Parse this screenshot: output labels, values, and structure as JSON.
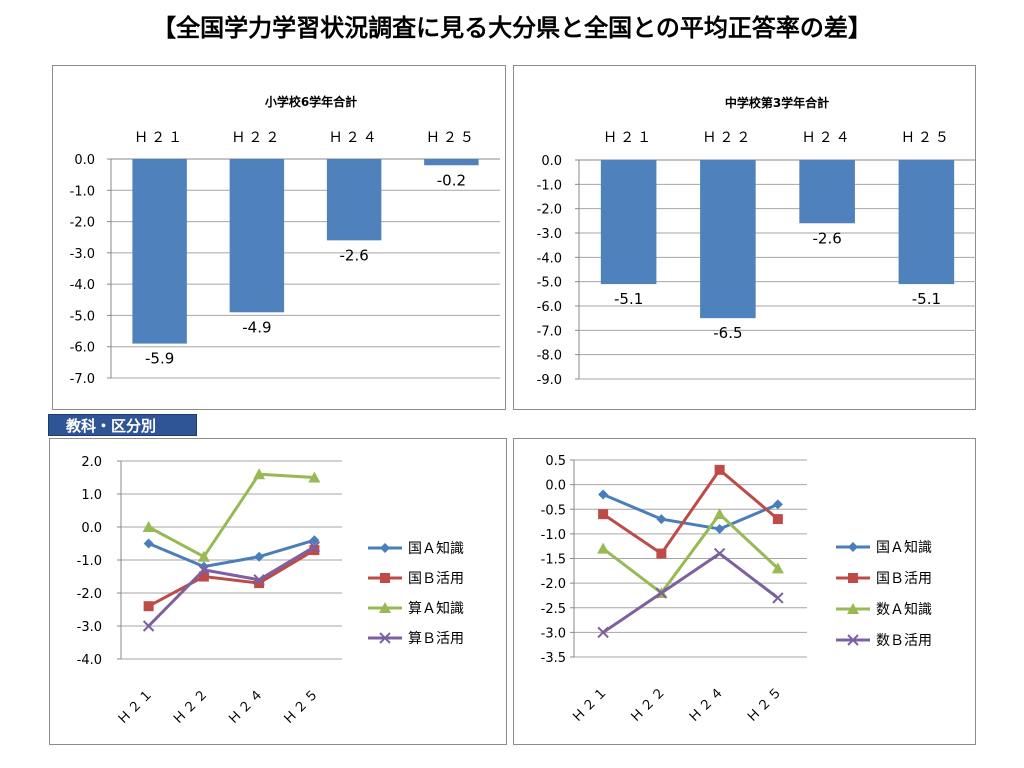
{
  "page_title": "【全国学力学習状況調査に見る大分県と全国との平均正答率の差】",
  "section_tag": "教科・区分別",
  "chart_data": [
    {
      "type": "bar",
      "title": "小学校6学年合計",
      "categories": [
        "Ｈ２１",
        "Ｈ２２",
        "Ｈ２４",
        "Ｈ２５"
      ],
      "values": [
        -5.9,
        -4.9,
        -2.6,
        -0.2
      ],
      "data_labels": [
        "-5.9",
        "-4.9",
        "-2.6",
        "-0.2"
      ],
      "ylim": [
        -7.0,
        0.0
      ],
      "yticks": [
        "0.0",
        "-1.0",
        "-2.0",
        "-3.0",
        "-4.0",
        "-5.0",
        "-6.0",
        "-7.0"
      ],
      "category_axis_position": "top",
      "grid": true,
      "bar_color": "#4f81bd"
    },
    {
      "type": "bar",
      "title": "中学校第3学年合計",
      "categories": [
        "Ｈ２１",
        "Ｈ２２",
        "Ｈ２４",
        "Ｈ２５"
      ],
      "values": [
        -5.1,
        -6.5,
        -2.6,
        -5.1
      ],
      "data_labels": [
        "-5.1",
        "-6.5",
        "-2.6",
        "-5.1"
      ],
      "ylim": [
        -9.0,
        0.0
      ],
      "yticks": [
        "0.0",
        "-1.0",
        "-2.0",
        "-3.0",
        "-4.0",
        "-5.0",
        "-6.0",
        "-7.0",
        "-8.0",
        "-9.0"
      ],
      "category_axis_position": "top",
      "grid": true,
      "bar_color": "#4f81bd"
    },
    {
      "type": "line",
      "categories": [
        "Ｈ２１",
        "Ｈ２２",
        "Ｈ２４",
        "Ｈ２５"
      ],
      "ylim": [
        -4.0,
        2.0
      ],
      "yticks": [
        "2.0",
        "1.0",
        "0.0",
        "-1.0",
        "-2.0",
        "-3.0",
        "-4.0"
      ],
      "grid": true,
      "legend_position": "right",
      "series": [
        {
          "name": "国Ａ知識",
          "values": [
            -0.5,
            -1.2,
            -0.9,
            -0.4
          ],
          "color": "#4a7ebb",
          "marker": "diamond"
        },
        {
          "name": "国Ｂ活用",
          "values": [
            -2.4,
            -1.5,
            -1.7,
            -0.7
          ],
          "color": "#be4b48",
          "marker": "square"
        },
        {
          "name": "算Ａ知識",
          "values": [
            0.0,
            -0.9,
            1.6,
            1.5
          ],
          "color": "#98b954",
          "marker": "triangle"
        },
        {
          "name": "算Ｂ活用",
          "values": [
            -3.0,
            -1.3,
            -1.6,
            -0.6
          ],
          "color": "#7d60a0",
          "marker": "x"
        }
      ]
    },
    {
      "type": "line",
      "categories": [
        "Ｈ２１",
        "Ｈ２２",
        "Ｈ２４",
        "Ｈ２５"
      ],
      "ylim": [
        -3.5,
        0.5
      ],
      "yticks": [
        "0.5",
        "0.0",
        "-0.5",
        "-1.0",
        "-1.5",
        "-2.0",
        "-2.5",
        "-3.0",
        "-3.5"
      ],
      "grid": true,
      "legend_position": "right",
      "series": [
        {
          "name": "国Ａ知識",
          "values": [
            -0.2,
            -0.7,
            -0.9,
            -0.4
          ],
          "color": "#4a7ebb",
          "marker": "diamond"
        },
        {
          "name": "国Ｂ活用",
          "values": [
            -0.6,
            -1.4,
            0.3,
            -0.7
          ],
          "color": "#be4b48",
          "marker": "square"
        },
        {
          "name": "数Ａ知識",
          "values": [
            -1.3,
            -2.2,
            -0.6,
            -1.7
          ],
          "color": "#98b954",
          "marker": "triangle"
        },
        {
          "name": "数Ｂ活用",
          "values": [
            -3.0,
            -2.2,
            -1.4,
            -2.3
          ],
          "color": "#7d60a0",
          "marker": "x"
        }
      ]
    }
  ]
}
